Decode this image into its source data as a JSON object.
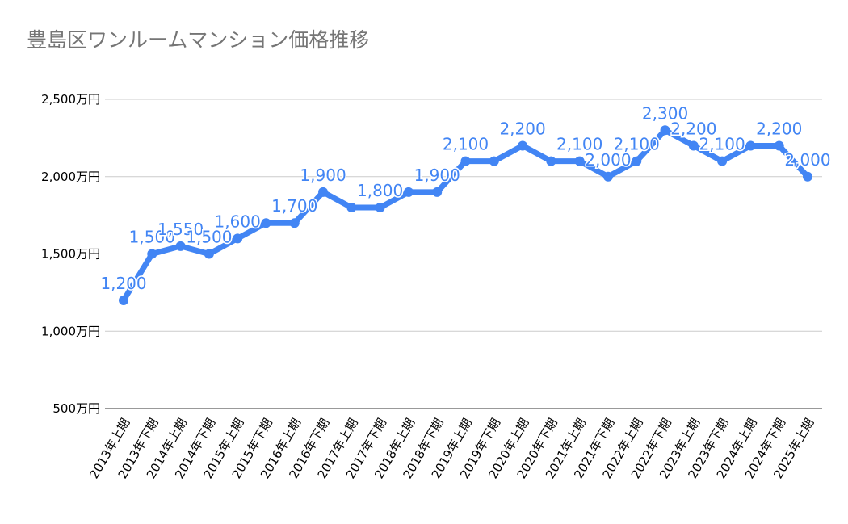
{
  "chart_data": {
    "type": "line",
    "title": "豊島区ワンルームマンション価格推移",
    "categories": [
      "2013年上期",
      "2013年下期",
      "2014年上期",
      "2014年下期",
      "2015年上期",
      "2015年下期",
      "2016年上期",
      "2016年下期",
      "2017年上期",
      "2017年下期",
      "2018年上期",
      "2018年下期",
      "2019年上期",
      "2019年下期",
      "2020年上期",
      "2020年下期",
      "2021年上期",
      "2021年下期",
      "2022年上期",
      "2022年下期",
      "2023年上期",
      "2023年下期",
      "2024年上期",
      "2024年下期",
      "2025年上期"
    ],
    "values": [
      1200,
      1500,
      1550,
      1500,
      1600,
      1700,
      1700,
      1900,
      1800,
      1800,
      1900,
      1900,
      2100,
      2100,
      2200,
      2100,
      2100,
      2000,
      2100,
      2300,
      2200,
      2100,
      2200,
      2200,
      2000
    ],
    "data_labels": [
      "1,200",
      "1,500",
      "1,550",
      "1,500",
      "1,600",
      "",
      "1,700",
      "1,900",
      "",
      "1,800",
      "",
      "1,900",
      "2,100",
      "",
      "2,200",
      "",
      "2,100",
      "2,000",
      "2,100",
      "2,300",
      "2,200",
      "2,100",
      "",
      "2,200",
      "2,000"
    ],
    "yticks": [
      "500万円",
      "1,000万円",
      "1,500万円",
      "2,000万円",
      "2,500万円"
    ],
    "ytick_values": [
      500,
      1000,
      1500,
      2000,
      2500
    ],
    "ylim": [
      500,
      2500
    ],
    "xlabel": "",
    "ylabel": "",
    "grid": true,
    "color": "#4285f4"
  }
}
